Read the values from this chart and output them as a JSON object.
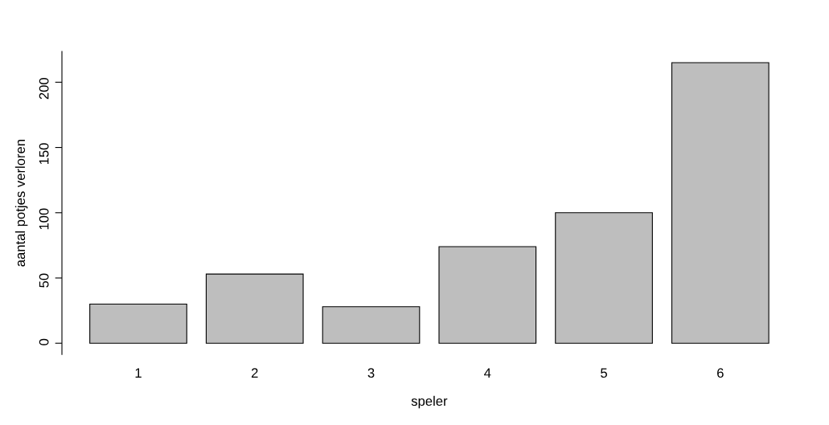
{
  "chart_data": {
    "type": "bar",
    "xlabel": "speler",
    "ylabel": "aantal potjes verloren",
    "categories": [
      "1",
      "2",
      "3",
      "4",
      "5",
      "6"
    ],
    "values": [
      30,
      53,
      28,
      74,
      100,
      215
    ],
    "color": "#bebebe",
    "ylim": [
      -8.6,
      223.6
    ],
    "yticks": [
      0,
      50,
      100,
      150,
      200
    ],
    "grid": false,
    "legend": false
  }
}
